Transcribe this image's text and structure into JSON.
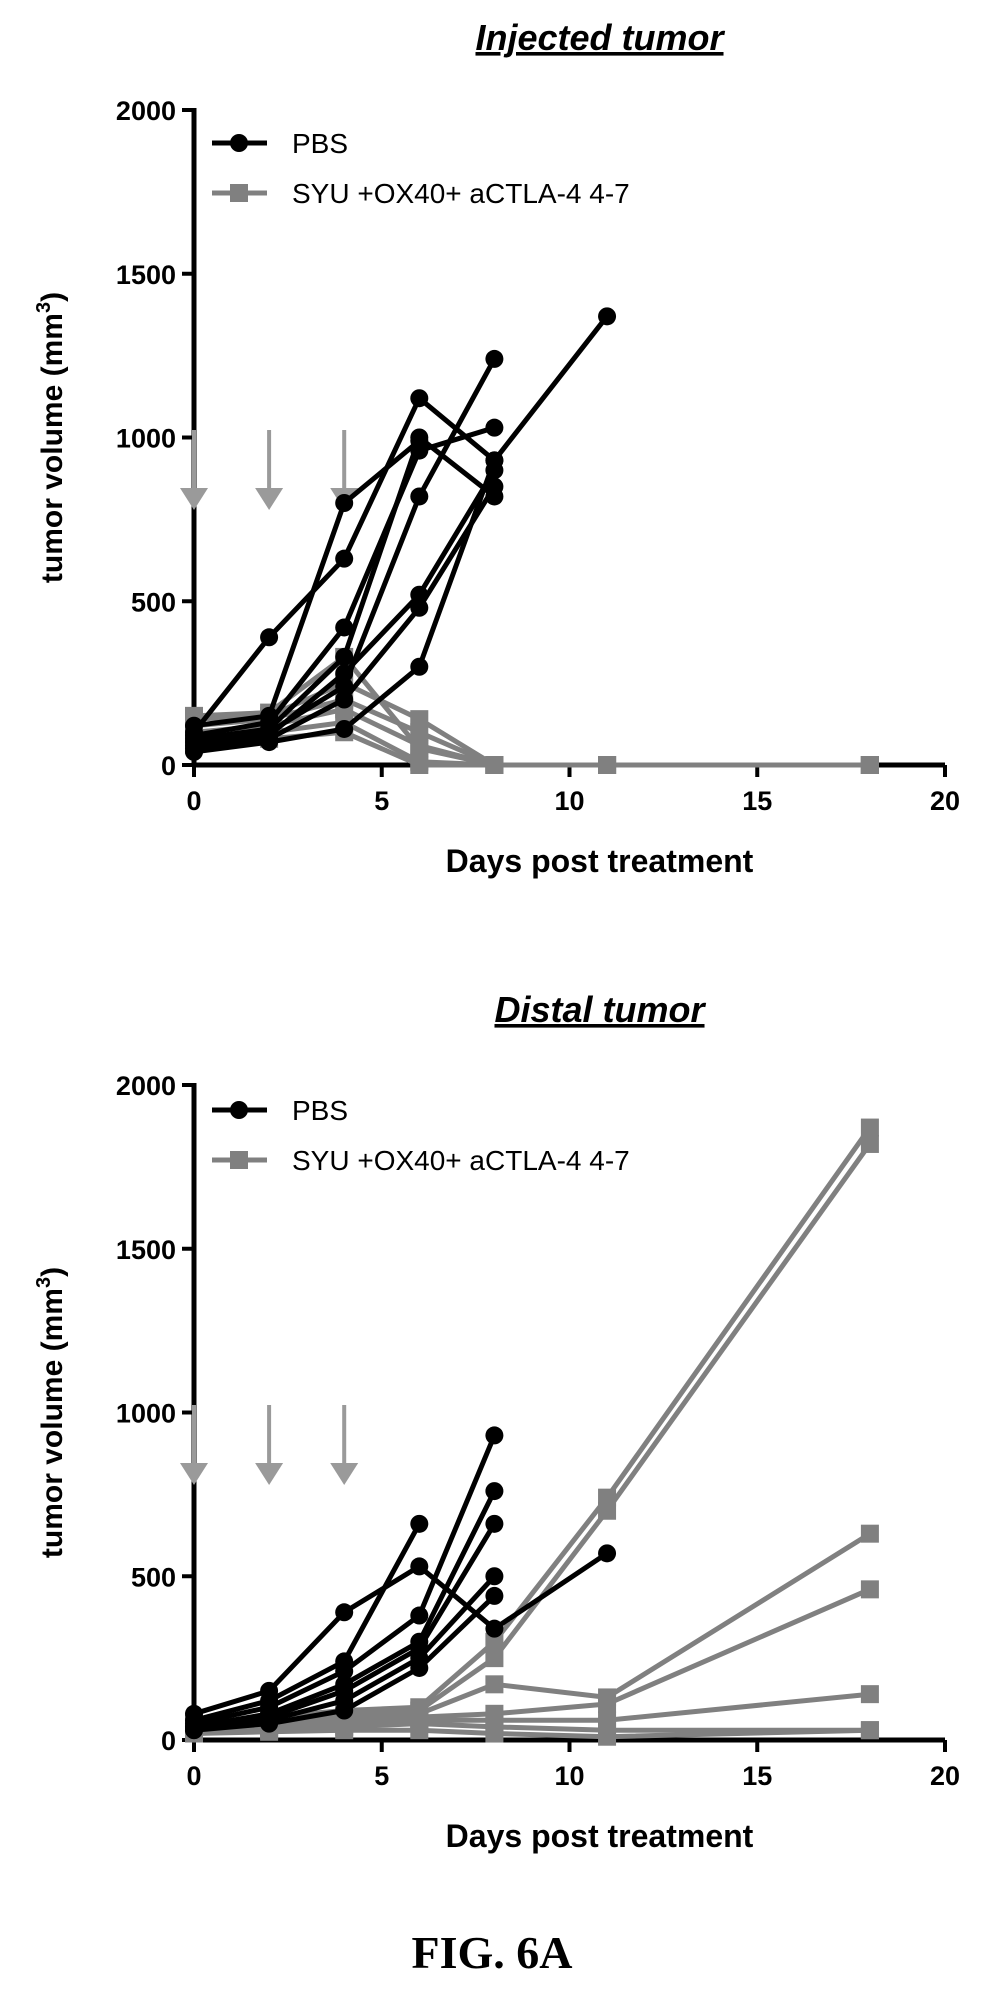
{
  "figure_label": "FIG. 6A",
  "colors": {
    "pbs": "#000000",
    "treat": "#808080",
    "arrow": "#9a9a9a"
  },
  "chart_data": [
    {
      "type": "line",
      "title": "Injected tumor",
      "xlabel": "Days post treatment",
      "ylabel": "tumor volume (mm",
      "ylabel_sup": "3",
      "ylabel_close": ")",
      "xlim": [
        0,
        20
      ],
      "ylim": [
        0,
        2000
      ],
      "xticks": [
        "0",
        "5",
        "10",
        "15",
        "20"
      ],
      "yticks": [
        "0",
        "500",
        "1000",
        "1500",
        "2000"
      ],
      "dosing_days": [
        0,
        2,
        4
      ],
      "legend": [
        "PBS",
        "SYU +OX40+ aCTLA-4 4-7"
      ],
      "pbs_series": [
        [
          [
            0,
            100
          ],
          [
            2,
            390
          ],
          [
            4,
            630
          ],
          [
            6,
            1120
          ],
          [
            8,
            930
          ]
        ],
        [
          [
            0,
            120
          ],
          [
            2,
            150
          ],
          [
            4,
            800
          ],
          [
            6,
            990
          ]
        ],
        [
          [
            0,
            90
          ],
          [
            2,
            130
          ],
          [
            4,
            420
          ],
          [
            6,
            960
          ],
          [
            8,
            1030
          ]
        ],
        [
          [
            0,
            80
          ],
          [
            2,
            110
          ],
          [
            4,
            330
          ],
          [
            6,
            1000
          ],
          [
            8,
            820
          ]
        ],
        [
          [
            0,
            70
          ],
          [
            2,
            100
          ],
          [
            4,
            240
          ],
          [
            6,
            820
          ],
          [
            8,
            1240
          ]
        ],
        [
          [
            0,
            60
          ],
          [
            2,
            90
          ],
          [
            4,
            280
          ],
          [
            6,
            520
          ],
          [
            8,
            900
          ]
        ],
        [
          [
            0,
            50
          ],
          [
            2,
            80
          ],
          [
            4,
            200
          ],
          [
            6,
            480
          ],
          [
            8,
            850
          ]
        ],
        [
          [
            0,
            40
          ],
          [
            2,
            70
          ],
          [
            4,
            110
          ],
          [
            6,
            300
          ],
          [
            8,
            930
          ],
          [
            11,
            1370
          ]
        ]
      ],
      "treat_series": [
        [
          [
            0,
            150
          ],
          [
            2,
            160
          ],
          [
            4,
            330
          ],
          [
            6,
            50
          ],
          [
            8,
            0
          ],
          [
            11,
            0
          ],
          [
            18,
            0
          ]
        ],
        [
          [
            0,
            140
          ],
          [
            2,
            150
          ],
          [
            4,
            250
          ],
          [
            6,
            140
          ],
          [
            8,
            0
          ],
          [
            11,
            0
          ],
          [
            18,
            0
          ]
        ],
        [
          [
            0,
            120
          ],
          [
            2,
            140
          ],
          [
            4,
            200
          ],
          [
            6,
            100
          ],
          [
            8,
            0
          ],
          [
            11,
            0
          ],
          [
            18,
            0
          ]
        ],
        [
          [
            0,
            100
          ],
          [
            2,
            120
          ],
          [
            4,
            170
          ],
          [
            6,
            60
          ],
          [
            8,
            0
          ],
          [
            11,
            0
          ],
          [
            18,
            0
          ]
        ],
        [
          [
            0,
            80
          ],
          [
            2,
            100
          ],
          [
            4,
            130
          ],
          [
            6,
            10
          ],
          [
            8,
            0
          ],
          [
            11,
            0
          ],
          [
            18,
            0
          ]
        ],
        [
          [
            0,
            60
          ],
          [
            2,
            80
          ],
          [
            4,
            100
          ],
          [
            6,
            0
          ],
          [
            8,
            0
          ],
          [
            11,
            0
          ],
          [
            18,
            0
          ]
        ]
      ]
    },
    {
      "type": "line",
      "title": "Distal tumor",
      "xlabel": "Days post treatment",
      "ylabel": "tumor volume (mm",
      "ylabel_sup": "3",
      "ylabel_close": ")",
      "xlim": [
        0,
        20
      ],
      "ylim": [
        0,
        2000
      ],
      "xticks": [
        "0",
        "5",
        "10",
        "15",
        "20"
      ],
      "yticks": [
        "0",
        "500",
        "1000",
        "1500",
        "2000"
      ],
      "dosing_days": [
        0,
        2,
        4
      ],
      "legend": [
        "PBS",
        "SYU +OX40+ aCTLA-4 4-7"
      ],
      "pbs_series": [
        [
          [
            0,
            80
          ],
          [
            2,
            150
          ],
          [
            4,
            390
          ],
          [
            6,
            530
          ],
          [
            8,
            340
          ],
          [
            11,
            570
          ]
        ],
        [
          [
            0,
            60
          ],
          [
            2,
            120
          ],
          [
            4,
            240
          ],
          [
            6,
            660
          ]
        ],
        [
          [
            0,
            50
          ],
          [
            2,
            100
          ],
          [
            4,
            210
          ],
          [
            6,
            380
          ],
          [
            8,
            930
          ]
        ],
        [
          [
            0,
            40
          ],
          [
            2,
            80
          ],
          [
            4,
            170
          ],
          [
            6,
            300
          ],
          [
            8,
            760
          ]
        ],
        [
          [
            0,
            40
          ],
          [
            2,
            70
          ],
          [
            4,
            150
          ],
          [
            6,
            280
          ],
          [
            8,
            660
          ]
        ],
        [
          [
            0,
            30
          ],
          [
            2,
            60
          ],
          [
            4,
            120
          ],
          [
            6,
            250
          ],
          [
            8,
            500
          ]
        ],
        [
          [
            0,
            30
          ],
          [
            2,
            50
          ],
          [
            4,
            90
          ],
          [
            6,
            220
          ],
          [
            8,
            440
          ]
        ]
      ],
      "treat_series": [
        [
          [
            0,
            50
          ],
          [
            2,
            70
          ],
          [
            4,
            90
          ],
          [
            6,
            100
          ],
          [
            8,
            300
          ],
          [
            11,
            740
          ],
          [
            18,
            1870
          ]
        ],
        [
          [
            0,
            40
          ],
          [
            2,
            60
          ],
          [
            4,
            80
          ],
          [
            6,
            90
          ],
          [
            8,
            250
          ],
          [
            11,
            700
          ],
          [
            18,
            1820
          ]
        ],
        [
          [
            0,
            40
          ],
          [
            2,
            60
          ],
          [
            4,
            70
          ],
          [
            6,
            80
          ],
          [
            8,
            170
          ],
          [
            11,
            130
          ],
          [
            18,
            630
          ]
        ],
        [
          [
            0,
            30
          ],
          [
            2,
            50
          ],
          [
            4,
            60
          ],
          [
            6,
            70
          ],
          [
            8,
            80
          ],
          [
            11,
            110
          ],
          [
            18,
            460
          ]
        ],
        [
          [
            0,
            30
          ],
          [
            2,
            40
          ],
          [
            4,
            50
          ],
          [
            6,
            60
          ],
          [
            8,
            60
          ],
          [
            11,
            60
          ],
          [
            18,
            140
          ]
        ],
        [
          [
            0,
            20
          ],
          [
            2,
            30
          ],
          [
            4,
            40
          ],
          [
            6,
            50
          ],
          [
            8,
            40
          ],
          [
            11,
            30
          ],
          [
            18,
            30
          ]
        ],
        [
          [
            0,
            20
          ],
          [
            2,
            25
          ],
          [
            4,
            30
          ],
          [
            6,
            30
          ],
          [
            8,
            20
          ],
          [
            11,
            10
          ],
          [
            18,
            30
          ]
        ]
      ]
    }
  ]
}
